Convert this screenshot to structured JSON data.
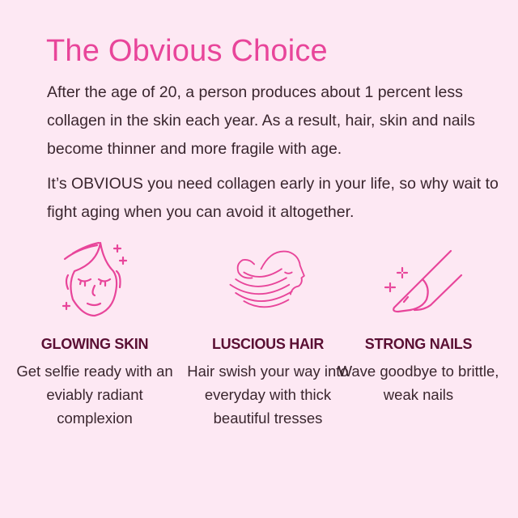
{
  "title": "The Obvious Choice",
  "paragraphs": [
    "After the age of 20, a person produces about 1 percent less collagen in the skin each year. As a result, hair, skin and nails become thinner and more fragile with age.",
    "It’s OBVIOUS you need collagen early in your life, so why wait to fight aging when you can avoid it altogether."
  ],
  "colors": {
    "background": "#fde8f3",
    "accent": "#e8459a",
    "heading": "#5a0f33",
    "body": "#3a262e"
  },
  "features": [
    {
      "icon": "face-icon",
      "heading": "GLOWING SKIN",
      "text": "Get selfie ready with an eviably radiant complexion"
    },
    {
      "icon": "flowing-hair-icon",
      "heading": "LUSCIOUS HAIR",
      "text": "Hair swish your way into everyday with thick beautiful tresses"
    },
    {
      "icon": "fingernail-icon",
      "heading": "STRONG NAILS",
      "text": "Wave goodbye to brittle, weak nails"
    }
  ]
}
